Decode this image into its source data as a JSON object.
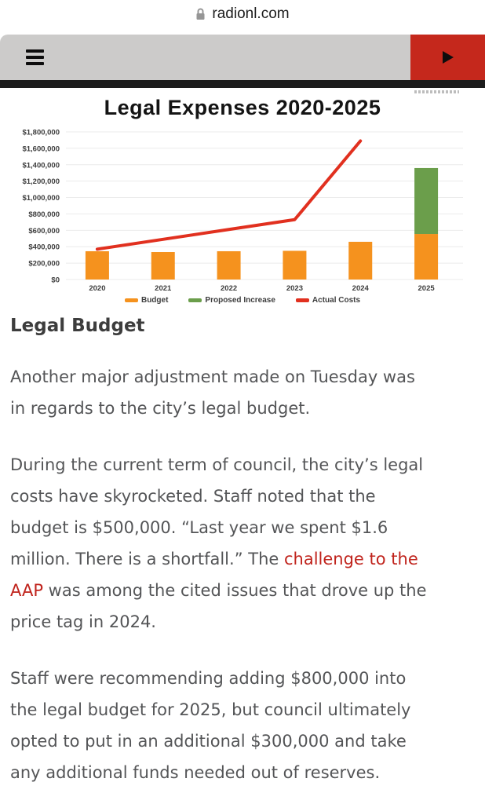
{
  "browser": {
    "url": "radionl.com"
  },
  "nav": {
    "bar_color": "#cccbca",
    "accent_color": "#c5281c"
  },
  "chart_data": {
    "type": "combo",
    "title": "Legal Expenses 2020-2025",
    "categories": [
      "2020",
      "2021",
      "2022",
      "2023",
      "2024",
      "2025"
    ],
    "series": [
      {
        "name": "Budget",
        "type": "bar",
        "color": "#F5921E",
        "values": [
          345000,
          335000,
          345000,
          350000,
          460000,
          555000
        ]
      },
      {
        "name": "Proposed Increase",
        "type": "bar-stacked",
        "color": "#6B9E4B",
        "values": [
          0,
          0,
          0,
          0,
          0,
          805000
        ]
      },
      {
        "name": "Actual Costs",
        "type": "line",
        "color": "#E1301F",
        "values": [
          370000,
          490000,
          610000,
          730000,
          1690000,
          null
        ]
      }
    ],
    "ylim": [
      0,
      1800000
    ],
    "y_tick_labels": [
      "$0",
      "$200,000",
      "$400,000",
      "$600,000",
      "$800,000",
      "$1,000,000",
      "$1,200,000",
      "$1,400,000",
      "$1,600,000",
      "$1,800,000"
    ],
    "grid": true,
    "legend_position": "bottom"
  },
  "article": {
    "heading": "Legal Budget",
    "paragraph1": "Another major adjustment made on Tuesday was\nin regards to the city’s legal budget.",
    "paragraph2": {
      "before": "During the current term of council, the city’s legal\ncosts have skyrocketed. Staff noted that the\nbudget is $500,000. “Last year we spent $1.6\nmillion. There is a shortfall.”  The ",
      "link": "challenge to the\nAAP",
      "after": " was among the cited issues that drove up the\nprice tag in 2024."
    },
    "paragraph3": "Staff were recommending adding $800,000 into\nthe legal budget for 2025, but council ultimately\nopted to put in an additional $300,000 and take\nany additional funds needed out of reserves.",
    "link_color": "#c0231c"
  }
}
